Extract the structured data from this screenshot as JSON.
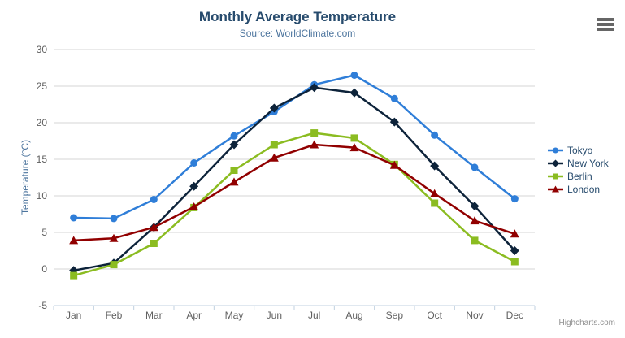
{
  "chart_data": {
    "type": "line",
    "title": "Monthly Average Temperature",
    "subtitle": "Source: WorldClimate.com",
    "xlabel": "",
    "ylabel": "Temperature (°C)",
    "ylim": [
      -5,
      30
    ],
    "yticks": [
      -5,
      0,
      5,
      10,
      15,
      20,
      25,
      30
    ],
    "grid": true,
    "legend_position": "right-middle",
    "categories": [
      "Jan",
      "Feb",
      "Mar",
      "Apr",
      "May",
      "Jun",
      "Jul",
      "Aug",
      "Sep",
      "Oct",
      "Nov",
      "Dec"
    ],
    "series": [
      {
        "name": "Tokyo",
        "color": "#2f7ed8",
        "marker": "circle",
        "values": [
          7.0,
          6.9,
          9.5,
          14.5,
          18.2,
          21.5,
          25.2,
          26.5,
          23.3,
          18.3,
          13.9,
          9.6
        ]
      },
      {
        "name": "New York",
        "color": "#0d233a",
        "marker": "diamond",
        "values": [
          -0.2,
          0.8,
          5.7,
          11.3,
          17.0,
          22.0,
          24.8,
          24.1,
          20.1,
          14.1,
          8.6,
          2.5
        ]
      },
      {
        "name": "Berlin",
        "color": "#8bbc21",
        "marker": "square",
        "values": [
          -0.9,
          0.6,
          3.5,
          8.4,
          13.5,
          17.0,
          18.6,
          17.9,
          14.3,
          9.0,
          3.9,
          1.0
        ]
      },
      {
        "name": "London",
        "color": "#910000",
        "marker": "triangle",
        "values": [
          3.9,
          4.2,
          5.7,
          8.5,
          11.9,
          15.2,
          17.0,
          16.6,
          14.2,
          10.3,
          6.6,
          4.8
        ]
      }
    ]
  },
  "toolbar": {
    "export_menu_icon": "hamburger-menu-icon"
  },
  "credits": {
    "label": "Highcharts.com"
  },
  "colors": {
    "title": "#274b6d",
    "subtitle": "#4d759e",
    "axis_label": "#606060",
    "axis_title": "#4d759e",
    "legend_text": "#274b6d",
    "grid_line": "#d6d6d6",
    "axis_line": "#c0d0e0",
    "credits": "#909090",
    "export_icon": "#666666"
  }
}
